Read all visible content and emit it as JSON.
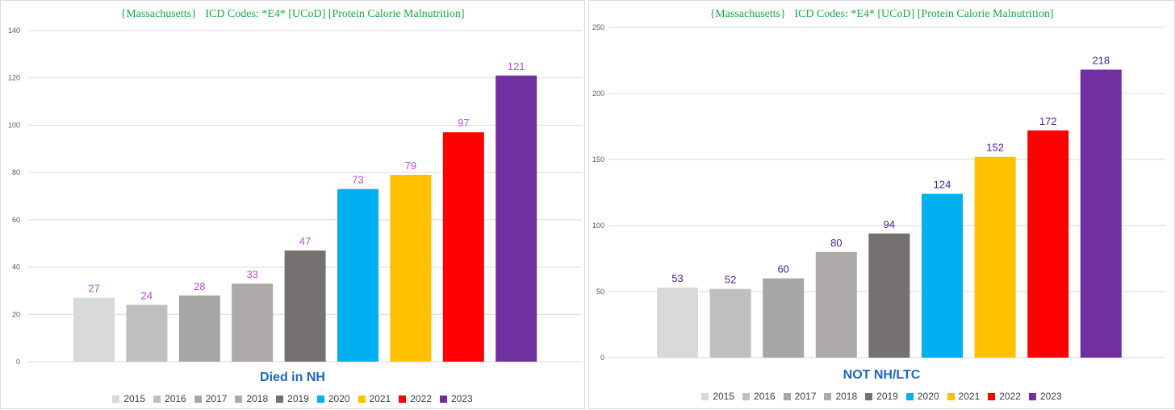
{
  "chart_data": [
    {
      "type": "bar",
      "title": "{Massachusetts}   ICD Codes: *E4* [UCoD] [Protein Calorie Malnutrition]",
      "subtitle": "Died in NH",
      "categories": [
        "2015",
        "2016",
        "2017",
        "2018",
        "2019",
        "2020",
        "2021",
        "2022",
        "2023"
      ],
      "values": [
        27,
        24,
        28,
        33,
        47,
        73,
        79,
        97,
        121
      ],
      "ylim": [
        0,
        140
      ],
      "yticks": [
        0,
        20,
        40,
        60,
        80,
        100,
        120,
        140
      ],
      "grid": true,
      "label_color": "#b84ed6",
      "legend_position": "bottom"
    },
    {
      "type": "bar",
      "title": "{Massachusetts}   ICD Codes: *E4* [UCoD] [Protein Calorie Malnutrition]",
      "subtitle": "NOT NH/LTC",
      "categories": [
        "2015",
        "2016",
        "2017",
        "2018",
        "2019",
        "2020",
        "2021",
        "2022",
        "2023"
      ],
      "values": [
        53,
        52,
        60,
        80,
        94,
        124,
        152,
        172,
        218
      ],
      "ylim": [
        0,
        250
      ],
      "yticks": [
        0,
        50,
        100,
        150,
        200,
        250
      ],
      "grid": true,
      "label_color": "#4b1d8c",
      "legend_position": "bottom"
    }
  ],
  "bar_colors": [
    "#d9d9d9",
    "#bfbfbf",
    "#a6a6a6",
    "#aeaaaa",
    "#767171",
    "#00b0f0",
    "#ffc000",
    "#ff0000",
    "#7030a0"
  ]
}
